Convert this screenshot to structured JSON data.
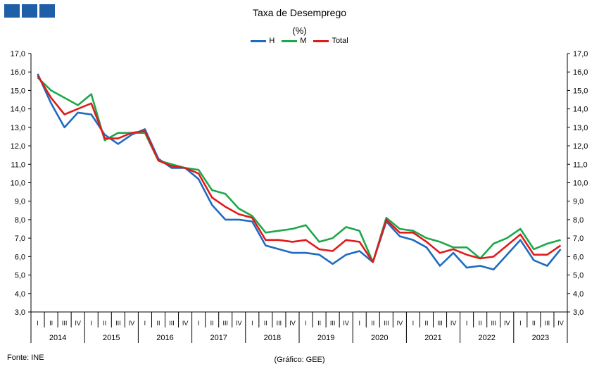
{
  "brand": {
    "block_color": "#1f5fa8",
    "blocks": 3
  },
  "title": "Taxa de Desemprego",
  "subtitle": "(%)",
  "source": "Fonte: INE",
  "credit": "(Gráfico: GEE)",
  "chart_data": {
    "type": "line",
    "title": "Taxa de Desemprego",
    "subtitle": "(%)",
    "ylim": [
      3.0,
      17.0
    ],
    "ytick_step": 1.0,
    "ytick_labels": [
      "3,0",
      "4,0",
      "5,0",
      "6,0",
      "7,0",
      "8,0",
      "9,0",
      "10,0",
      "11,0",
      "12,0",
      "13,0",
      "14,0",
      "15,0",
      "16,0",
      "17,0"
    ],
    "grid": false,
    "legend_position": "top-center",
    "years": [
      "2014",
      "2015",
      "2016",
      "2017",
      "2018",
      "2019",
      "2020",
      "2021",
      "2022",
      "2023"
    ],
    "quarters": [
      "I",
      "II",
      "III",
      "IV"
    ],
    "series": [
      {
        "name": "H",
        "color": "#1f6bbf",
        "values": [
          15.9,
          14.3,
          13.0,
          13.8,
          13.7,
          12.6,
          12.1,
          12.6,
          12.9,
          11.3,
          10.8,
          10.8,
          10.2,
          8.8,
          8.0,
          8.0,
          7.9,
          6.6,
          6.4,
          6.2,
          6.2,
          6.1,
          5.6,
          6.1,
          6.3,
          5.7,
          7.9,
          7.1,
          6.9,
          6.5,
          5.5,
          6.2,
          5.4,
          5.5,
          5.3,
          6.1,
          6.9,
          5.8,
          5.5,
          6.4
        ]
      },
      {
        "name": "M",
        "color": "#1ea84a",
        "values": [
          15.7,
          15.0,
          14.6,
          14.2,
          14.8,
          12.3,
          12.7,
          12.7,
          12.7,
          11.2,
          11.0,
          10.8,
          10.7,
          9.6,
          9.4,
          8.6,
          8.2,
          7.3,
          7.4,
          7.5,
          7.7,
          6.8,
          7.0,
          7.6,
          7.4,
          5.7,
          8.1,
          7.5,
          7.4,
          7.0,
          6.8,
          6.5,
          6.5,
          5.9,
          6.7,
          7.0,
          7.5,
          6.4,
          6.7,
          6.9
        ]
      },
      {
        "name": "Total",
        "color": "#e01b1b",
        "values": [
          15.8,
          14.6,
          13.7,
          14.0,
          14.3,
          12.4,
          12.4,
          12.7,
          12.8,
          11.2,
          10.9,
          10.8,
          10.5,
          9.2,
          8.7,
          8.3,
          8.1,
          6.9,
          6.9,
          6.8,
          6.9,
          6.4,
          6.3,
          6.9,
          6.8,
          5.7,
          8.0,
          7.3,
          7.3,
          6.8,
          6.2,
          6.4,
          6.1,
          5.9,
          6.0,
          6.6,
          7.2,
          6.1,
          6.1,
          6.6
        ]
      }
    ]
  }
}
